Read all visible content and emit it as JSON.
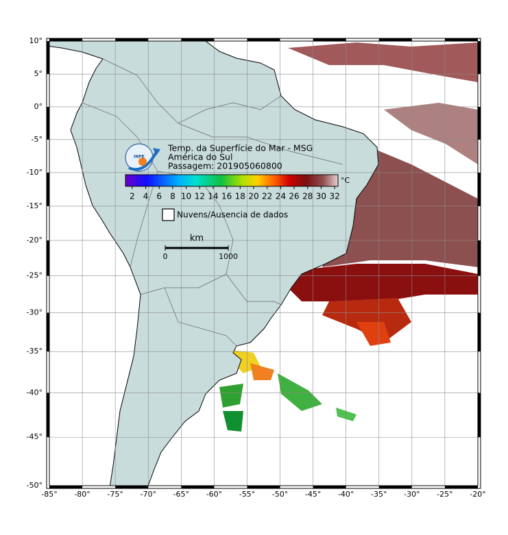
{
  "map": {
    "title": "Temp. da Superfície do Mar - MSG",
    "region": "América do Sul",
    "pass": "Passagem: 201905060800",
    "logo": "INPE",
    "lon_range": [
      -85,
      -20
    ],
    "lat_range": [
      -50,
      10
    ],
    "lon_ticks": [
      {
        "value": -85,
        "label": "-85°"
      },
      {
        "value": -80,
        "label": "-80°"
      },
      {
        "value": -75,
        "label": "-75°"
      },
      {
        "value": -70,
        "label": "-70°"
      },
      {
        "value": -65,
        "label": "-65°"
      },
      {
        "value": -60,
        "label": "-60°"
      },
      {
        "value": -55,
        "label": "-55°"
      },
      {
        "value": -50,
        "label": "-50°"
      },
      {
        "value": -45,
        "label": "-45°"
      },
      {
        "value": -40,
        "label": "-40°"
      },
      {
        "value": -35,
        "label": "-35°"
      },
      {
        "value": -30,
        "label": "-30°"
      },
      {
        "value": -25,
        "label": "-25°"
      },
      {
        "value": -20,
        "label": "-20°"
      }
    ],
    "lat_ticks": [
      {
        "value": 10,
        "label": "10°"
      },
      {
        "value": 5,
        "label": "5°"
      },
      {
        "value": 0,
        "label": "0°"
      },
      {
        "value": -5,
        "label": "-5°"
      },
      {
        "value": -10,
        "label": "-10°"
      },
      {
        "value": -15,
        "label": "-15°"
      },
      {
        "value": -20,
        "label": "-20°"
      },
      {
        "value": -25,
        "label": "-25°"
      },
      {
        "value": -30,
        "label": "-30°"
      },
      {
        "value": -35,
        "label": "-35°"
      },
      {
        "value": -40,
        "label": "-40°"
      },
      {
        "value": -45,
        "label": "-45°"
      },
      {
        "value": -50,
        "label": "-50°"
      }
    ],
    "colorbar": {
      "range": [
        1,
        32.5
      ],
      "ticks": [
        2,
        4,
        6,
        8,
        10,
        12,
        14,
        16,
        18,
        20,
        22,
        24,
        26,
        28,
        30,
        32
      ],
      "unit": "°C"
    },
    "legend": "Nuvens/Ausencia de dados",
    "scale_bar": {
      "unit": "km",
      "ticks": [
        0,
        1000
      ]
    }
  }
}
